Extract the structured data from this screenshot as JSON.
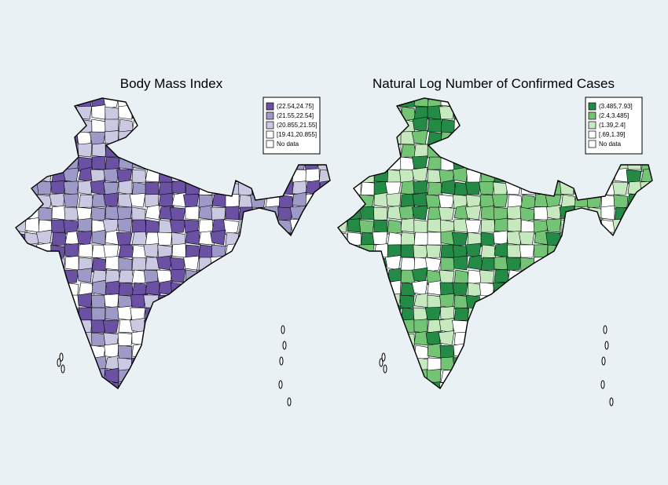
{
  "maps": [
    {
      "title": "Body Mass Index",
      "legend": [
        {
          "label": "(22.54,24.75]",
          "color": "#6a51a3"
        },
        {
          "label": "(21.55,22.54]",
          "color": "#9e9ac8"
        },
        {
          "label": "(20.855,21.55]",
          "color": "#cbc9e2"
        },
        {
          "label": "[19.41,20.855]",
          "color": "#ffffff"
        },
        {
          "label": "No data",
          "color": "#ffffff"
        }
      ]
    },
    {
      "title": "Natural Log Number of Confirmed Cases",
      "legend": [
        {
          "label": "(3.485,7.93]",
          "color": "#238b45"
        },
        {
          "label": "(2.4,3.485]",
          "color": "#74c476"
        },
        {
          "label": "(1.39,2.4]",
          "color": "#c7e9c0"
        },
        {
          "label": "[.69,1.39]",
          "color": "#ffffff"
        },
        {
          "label": "No data",
          "color": "#ffffff"
        }
      ]
    }
  ]
}
